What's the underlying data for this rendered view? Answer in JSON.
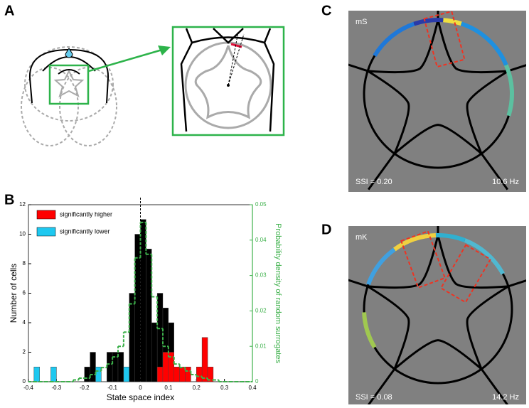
{
  "panels": {
    "a": "A",
    "b": "B",
    "c": "C",
    "d": "D"
  },
  "panel_c": {
    "label": "mS",
    "ssi": "SSI = 0.20",
    "freq": "10.6 Hz"
  },
  "panel_d": {
    "label": "mK",
    "ssi": "SSI = 0.08",
    "freq": "14.2 Hz"
  },
  "chart_data": {
    "type": "histogram",
    "xlabel": "State space index",
    "ylabel": "Number of cells",
    "y2label": "Probability density of random surrogates",
    "bins": [
      -0.4,
      -0.38,
      -0.36,
      -0.34,
      -0.32,
      -0.3,
      -0.28,
      -0.26,
      -0.24,
      -0.22,
      -0.2,
      -0.18,
      -0.16,
      -0.14,
      -0.12,
      -0.1,
      -0.08,
      -0.06,
      -0.04,
      -0.02,
      0,
      0.02,
      0.04,
      0.06,
      0.08,
      0.1,
      0.12,
      0.14,
      0.16,
      0.18,
      0.2,
      0.22,
      0.24,
      0.26,
      0.28,
      0.3,
      0.32,
      0.34,
      0.36,
      0.38,
      0.4
    ],
    "series": [
      {
        "color": "#000000",
        "values": [
          0,
          1,
          0,
          0,
          1,
          0,
          0,
          0,
          0,
          0,
          1,
          2,
          1,
          0,
          2,
          2,
          2,
          1,
          6,
          10,
          11,
          9,
          4,
          6,
          5,
          4,
          1,
          1,
          1,
          0,
          1,
          3,
          1,
          0,
          0,
          0,
          0,
          0,
          0,
          0
        ]
      },
      {
        "name": "significantly higher",
        "color": "#ff0000",
        "values": [
          0,
          0,
          0,
          0,
          0,
          0,
          0,
          0,
          0,
          0,
          0,
          0,
          0,
          0,
          0,
          0,
          0,
          0,
          0,
          0,
          0,
          0,
          0,
          1,
          2,
          2,
          1,
          1,
          1,
          0,
          1,
          3,
          1,
          0,
          0,
          0,
          0,
          0,
          0,
          0
        ]
      },
      {
        "name": "significantly lower",
        "color": "#1ec8f0",
        "values": [
          0,
          1,
          0,
          0,
          1,
          0,
          0,
          0,
          0,
          0,
          0,
          0,
          1,
          0,
          0,
          0,
          0,
          1,
          0,
          0,
          0,
          0,
          0,
          0,
          0,
          0,
          0,
          0,
          0,
          0,
          0,
          0,
          0,
          0,
          0,
          0,
          0,
          0,
          0,
          0
        ]
      },
      {
        "color": "#3cb04a",
        "axis": "y2",
        "values": [
          0,
          0,
          0,
          0,
          0,
          0,
          0,
          0,
          0.0005,
          0.001,
          0.001,
          0.002,
          0.003,
          0.004,
          0.005,
          0.007,
          0.01,
          0.014,
          0.022,
          0.035,
          0.045,
          0.036,
          0.024,
          0.015,
          0.01,
          0.007,
          0.005,
          0.004,
          0.003,
          0.002,
          0.0015,
          0.001,
          0.0005,
          0.0005,
          0,
          0,
          0,
          0,
          0,
          0
        ]
      }
    ],
    "xlim": [
      -0.4,
      0.4
    ],
    "xticks": [
      -0.4,
      -0.3,
      -0.2,
      -0.1,
      0,
      0.1,
      0.2,
      0.3,
      0.4
    ],
    "ylim": [
      0,
      12
    ],
    "yticks": [
      0,
      2,
      4,
      6,
      8,
      10,
      12
    ],
    "y2lim": [
      0,
      0.05
    ],
    "y2ticks": [
      0,
      0.01,
      0.02,
      0.03,
      0.04,
      0.05
    ]
  }
}
